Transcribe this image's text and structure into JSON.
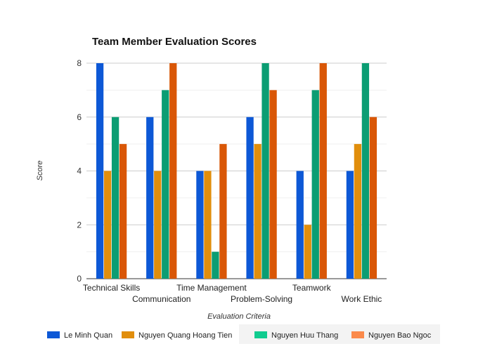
{
  "chart_data": {
    "type": "bar",
    "title": "Team Member Evaluation Scores",
    "xlabel": "Evaluation Criteria",
    "ylabel": "Score",
    "ylim": [
      0,
      8
    ],
    "yticks": [
      0,
      2,
      4,
      6,
      8
    ],
    "grid": true,
    "legend_position": "bottom",
    "categories": [
      "Technical Skills",
      "Communication",
      "Time Management",
      "Problem-Solving",
      "Teamwork",
      "Work Ethic"
    ],
    "series": [
      {
        "name": "Le Minh Quan",
        "color": "#0d58d6",
        "values": [
          8,
          6,
          4,
          6,
          4,
          4
        ]
      },
      {
        "name": "Nguyen Quang Hoang Tien",
        "color": "#e18e0c",
        "values": [
          4,
          4,
          4,
          5,
          2,
          5
        ]
      },
      {
        "name": "Nguyen Huu Thang",
        "color": "#0b9d73",
        "values": [
          6,
          7,
          1,
          8,
          7,
          8
        ]
      },
      {
        "name": "Nguyen Bao Ngoc",
        "color": "#d95707",
        "values": [
          5,
          8,
          5,
          7,
          8,
          6
        ]
      }
    ],
    "legend_colors": [
      "#0d58d6",
      "#e18e0c",
      "#10cc8f",
      "#fb8a4b"
    ]
  }
}
